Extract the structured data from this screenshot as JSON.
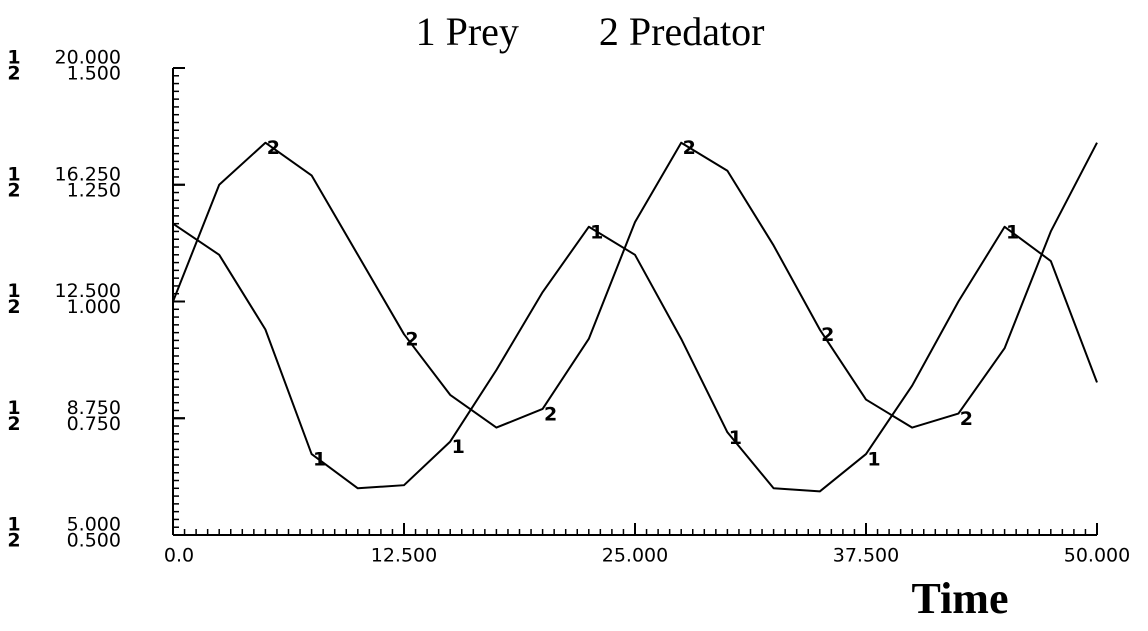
{
  "chart_data": {
    "type": "line",
    "x_label": "Time",
    "x": [
      0,
      2.5,
      5,
      7.5,
      10,
      12.5,
      15,
      17.5,
      20,
      22.5,
      25,
      27.5,
      30,
      32.5,
      35,
      37.5,
      40,
      42.5,
      45,
      47.5,
      50
    ],
    "series": [
      {
        "label": "1",
        "name": "Prey",
        "color": "#000000",
        "values": [
          15.0,
          14.0,
          11.6,
          7.6,
          6.5,
          6.6,
          8.0,
          10.3,
          12.8,
          14.9,
          14.0,
          11.3,
          8.3,
          6.5,
          6.4,
          7.6,
          9.8,
          12.5,
          14.9,
          13.8,
          9.9
        ]
      },
      {
        "label": "2",
        "name": "Predator",
        "color": "#000000",
        "axis": "y2",
        "values": [
          1.0,
          1.25,
          1.34,
          1.27,
          1.1,
          0.93,
          0.8,
          0.73,
          0.77,
          0.92,
          1.17,
          1.34,
          1.28,
          1.12,
          0.94,
          0.79,
          0.73,
          0.76,
          0.9,
          1.15,
          1.34
        ]
      }
    ],
    "xlim": [
      0,
      50
    ],
    "xticks": [
      {
        "value": 0,
        "label": "0.0"
      },
      {
        "value": 12.5,
        "label": "12.500"
      },
      {
        "value": 25,
        "label": "25.000"
      },
      {
        "value": 37.5,
        "label": "37.500"
      },
      {
        "value": 50,
        "label": "50.000"
      }
    ],
    "ylim": [
      5,
      20
    ],
    "yticks": [
      {
        "value": 5,
        "label": "5.000"
      },
      {
        "value": 8.75,
        "label": "8.750"
      },
      {
        "value": 12.5,
        "label": "12.500"
      },
      {
        "value": 16.25,
        "label": "16.250"
      },
      {
        "value": 20,
        "label": "20.000"
      }
    ],
    "y2lim": [
      0.5,
      1.5
    ],
    "y2ticks": [
      {
        "value": 0.5,
        "label": "0.500"
      },
      {
        "value": 0.75,
        "label": "0.750"
      },
      {
        "value": 1.0,
        "label": "1.000"
      },
      {
        "value": 1.25,
        "label": "1.250"
      },
      {
        "value": 1.5,
        "label": "1.500"
      }
    ]
  }
}
